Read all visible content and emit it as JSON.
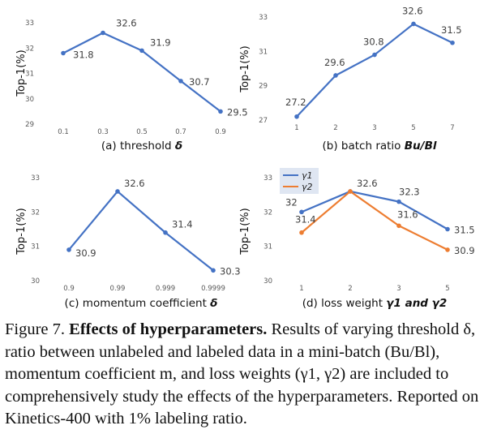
{
  "chart_data": [
    {
      "type": "line",
      "ylabel": "Top-1(%)",
      "xlabel": "",
      "caption_prefix": "(a) threshold ",
      "caption_symbol": "δ",
      "categories": [
        "0.1",
        "0.3",
        "0.5",
        "0.7",
        "0.9"
      ],
      "yticks": [
        "33",
        "32",
        "31",
        "30",
        "29"
      ],
      "ylim": [
        29,
        33
      ],
      "series": [
        {
          "values": [
            31.8,
            32.6,
            31.9,
            30.7,
            29.5
          ],
          "color": "#4472C4"
        }
      ],
      "data_labels": [
        "31.8",
        "32.6",
        "31.9",
        "30.7",
        "29.5"
      ]
    },
    {
      "type": "line",
      "ylabel": "Top-1(%)",
      "xlabel": "",
      "caption_prefix": "(b) batch ratio ",
      "caption_symbol": "Bu/Bl",
      "categories": [
        "1",
        "2",
        "3",
        "5",
        "7"
      ],
      "yticks": [
        "33",
        "31",
        "29",
        "27"
      ],
      "ylim": [
        27,
        33
      ],
      "series": [
        {
          "values": [
            27.2,
            29.6,
            30.8,
            32.6,
            31.5
          ],
          "color": "#4472C4"
        }
      ],
      "data_labels": [
        "27.2",
        "29.6",
        "30.8",
        "32.6",
        "31.5"
      ]
    },
    {
      "type": "line",
      "ylabel": "Top-1(%)",
      "xlabel": "",
      "caption_prefix": "(c) momentum coefficient ",
      "caption_symbol": "δ",
      "categories": [
        "0.9",
        "0.99",
        "0.999",
        "0.9999"
      ],
      "yticks": [
        "33",
        "32",
        "31",
        "30"
      ],
      "ylim": [
        30,
        33
      ],
      "series": [
        {
          "values": [
            30.9,
            32.6,
            31.4,
            30.3
          ],
          "color": "#4472C4"
        }
      ],
      "data_labels": [
        "30.9",
        "32.6",
        "31.4",
        "30.3"
      ]
    },
    {
      "type": "line",
      "ylabel": "Top-1(%)",
      "xlabel": "",
      "caption_prefix": "(d) loss weight ",
      "caption_symbol": "γ1 and γ2",
      "categories": [
        "1",
        "2",
        "3",
        "5"
      ],
      "yticks": [
        "33",
        "32",
        "31",
        "30"
      ],
      "ylim": [
        30,
        33
      ],
      "legend": "top-left",
      "series": [
        {
          "name": "γ1",
          "values": [
            32,
            32.6,
            32.3,
            31.5
          ],
          "color": "#4472C4",
          "data_labels": [
            "32",
            "32.6",
            "32.3",
            "31.5"
          ]
        },
        {
          "name": "γ2",
          "values": [
            31.4,
            32.6,
            31.6,
            30.9
          ],
          "color": "#ED7D31",
          "data_labels": [
            "31.4",
            "",
            "31.6",
            "30.9"
          ]
        }
      ]
    }
  ],
  "caption": {
    "figure_label": "Figure 7.",
    "title": "Effects of hyperparameters.",
    "body": " Results of varying threshold δ, ratio between unlabeled and labeled data in a mini-batch (Bu/Bl), momentum coefficient m, and loss weights (γ1, γ2) are included to comprehensively study the effects of the hyperparameters. Reported on Kinetics-400 with 1% labeling ratio."
  }
}
